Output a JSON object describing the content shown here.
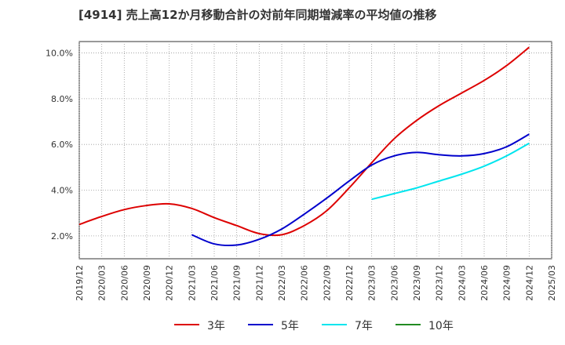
{
  "chart_data": {
    "type": "line",
    "title": "[4914]  売上高12か月移動合計の対前年同期増減率の平均値の推移",
    "xlabel": "",
    "ylabel": "",
    "x_ticks": [
      "2019/12",
      "2020/03",
      "2020/06",
      "2020/09",
      "2020/12",
      "2021/03",
      "2021/06",
      "2021/09",
      "2021/12",
      "2022/03",
      "2022/06",
      "2022/09",
      "2022/12",
      "2023/03",
      "2023/06",
      "2023/09",
      "2023/12",
      "2024/03",
      "2024/06",
      "2024/09",
      "2024/12",
      "2025/03"
    ],
    "y_ticks": [
      "2.0%",
      "4.0%",
      "6.0%",
      "8.0%",
      "10.0%"
    ],
    "y_tick_values": [
      2,
      4,
      6,
      8,
      10
    ],
    "ylim": [
      1.0,
      10.5
    ],
    "grid": true,
    "legend_position": "bottom",
    "series": [
      {
        "name": "3年",
        "color": "#dd0000",
        "x": [
          "2019/12",
          "2020/03",
          "2020/06",
          "2020/09",
          "2020/12",
          "2021/03",
          "2021/06",
          "2021/09",
          "2021/12",
          "2022/03",
          "2022/06",
          "2022/09",
          "2022/12",
          "2023/03",
          "2023/06",
          "2023/09",
          "2023/12",
          "2024/03",
          "2024/06",
          "2024/09",
          "2024/12"
        ],
        "values": [
          2.5,
          2.85,
          3.15,
          3.33,
          3.4,
          3.2,
          2.8,
          2.45,
          2.1,
          2.05,
          2.45,
          3.1,
          4.1,
          5.2,
          6.25,
          7.05,
          7.7,
          8.25,
          8.8,
          9.45,
          10.25
        ]
      },
      {
        "name": "5年",
        "color": "#0000cc",
        "x": [
          "2021/03",
          "2021/06",
          "2021/09",
          "2021/12",
          "2022/03",
          "2022/06",
          "2022/09",
          "2022/12",
          "2023/03",
          "2023/06",
          "2023/09",
          "2023/12",
          "2024/03",
          "2024/06",
          "2024/09",
          "2024/12"
        ],
        "values": [
          2.05,
          1.65,
          1.6,
          1.85,
          2.3,
          2.95,
          3.65,
          4.4,
          5.1,
          5.5,
          5.65,
          5.55,
          5.5,
          5.6,
          5.9,
          6.45
        ]
      },
      {
        "name": "7年",
        "color": "#00e5ee",
        "x": [
          "2023/03",
          "2023/06",
          "2023/09",
          "2023/12",
          "2024/03",
          "2024/06",
          "2024/09",
          "2024/12"
        ],
        "values": [
          3.6,
          3.85,
          4.1,
          4.4,
          4.7,
          5.05,
          5.5,
          6.05
        ]
      },
      {
        "name": "10年",
        "color": "#228b22",
        "x": [],
        "values": []
      }
    ]
  }
}
